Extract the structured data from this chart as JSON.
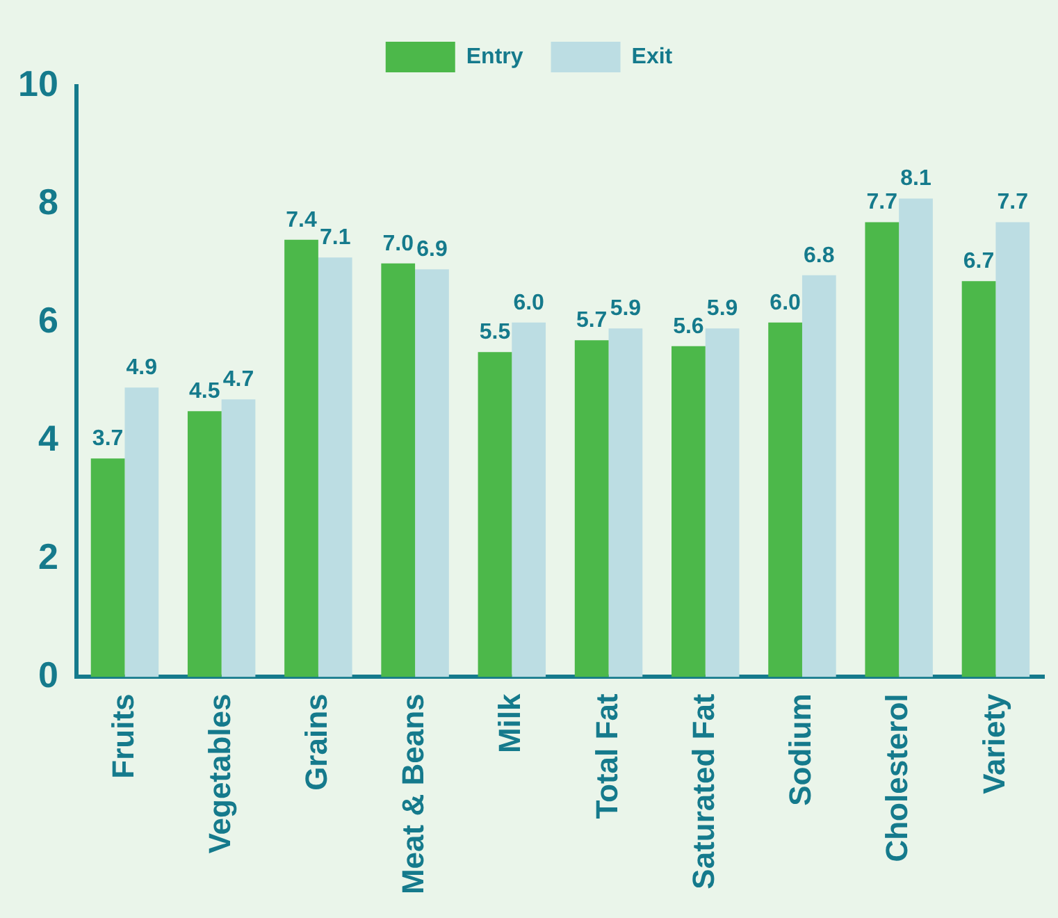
{
  "chart_data": {
    "type": "bar",
    "categories": [
      "Fruits",
      "Vegetables",
      "Grains",
      "Meat & Beans",
      "Milk",
      "Total Fat",
      "Saturated Fat",
      "Sodium",
      "Cholesterol",
      "Variety"
    ],
    "series": [
      {
        "name": "Entry",
        "color": "#4cb84a",
        "values": [
          3.7,
          4.5,
          7.4,
          7.0,
          5.5,
          5.7,
          5.6,
          6.0,
          7.7,
          6.7
        ],
        "value_labels": [
          "3.7",
          "4.5",
          "7.4",
          "7.0",
          "5.5",
          "5.7",
          "5.6",
          "6.0",
          "7.7",
          "6.7"
        ]
      },
      {
        "name": "Exit",
        "color": "#bcdde3",
        "values": [
          4.9,
          4.7,
          7.1,
          6.9,
          6.0,
          5.9,
          5.9,
          6.8,
          8.1,
          7.7
        ],
        "value_labels": [
          "4.9",
          "4.7",
          "7.1",
          "6.9",
          "6.0",
          "5.9",
          "5.9",
          "6.8",
          "8.1",
          "7.7"
        ]
      }
    ],
    "ylim": [
      0,
      10
    ],
    "yticks": [
      0,
      2,
      4,
      6,
      8,
      10
    ],
    "grid": false,
    "legend": "top"
  }
}
